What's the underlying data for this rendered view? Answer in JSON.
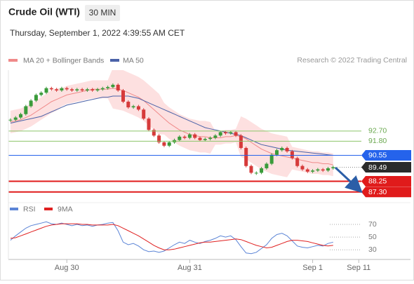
{
  "header": {
    "title": "Crude Oil (WTI)",
    "timeframe": "30 MIN",
    "timestamp": "Thursday, September 1, 2022 4:39:55 AM CET"
  },
  "chart_data": [
    {
      "type": "candlestick",
      "annotation": "Research © 2022 Trading Central",
      "xlim": [
        -0.4,
        78.1
      ],
      "ylim": [
        86.6,
        98.1
      ],
      "candles": {
        "up_color": "#3a9b3a",
        "down_color": "#d63a3a",
        "values": [
          93.7,
          93.9,
          94.2,
          94.9,
          95.4,
          95.9,
          96.1,
          96.5,
          96.4,
          96.3,
          96.5,
          96.4,
          96.3,
          96.4,
          96.3,
          96.4,
          96.3,
          96.4,
          96.5,
          96.6,
          96.8,
          96.3,
          95.3,
          94.8,
          94.9,
          94.6,
          93.8,
          92.8,
          92.3,
          91.7,
          91.4,
          91.7,
          91.9,
          92.2,
          92.1,
          92.4,
          92.1,
          91.9,
          92.0,
          92.1,
          92.3,
          92.6,
          92.5,
          92.6,
          92.3,
          91.2,
          89.6,
          89.0,
          89.0,
          89.4,
          89.8,
          90.6,
          91.0,
          91.2,
          90.9,
          90.3,
          89.6,
          89.3,
          89.1,
          89.2,
          89.3,
          89.2,
          89.4,
          89.5
        ]
      },
      "series": [
        {
          "name": "MA 20 + Bollinger Bands",
          "color": "#f08a8a",
          "band_color": "#fde0e0",
          "values": [
            93.5,
            93.6,
            93.7,
            93.9,
            94.1,
            94.4,
            94.7,
            95.0,
            95.3,
            95.5,
            95.7,
            95.9,
            96.0,
            96.1,
            96.2,
            96.3,
            96.4,
            96.4,
            96.4,
            96.4,
            96.5,
            96.4,
            96.3,
            96.1,
            95.9,
            95.7,
            95.4,
            95.0,
            94.6,
            94.2,
            93.8,
            93.4,
            93.1,
            92.8,
            92.6,
            92.4,
            92.3,
            92.2,
            92.2,
            92.1,
            92.1,
            92.1,
            92.2,
            92.2,
            92.3,
            92.2,
            92.0,
            91.7,
            91.4,
            91.1,
            90.9,
            90.7,
            90.6,
            90.5,
            90.4,
            90.3,
            90.2,
            90.1,
            90.0,
            89.9,
            89.9,
            89.8,
            89.8,
            89.7
          ],
          "upper": [
            94.5,
            94.6,
            94.7,
            94.9,
            95.1,
            95.4,
            95.7,
            96.0,
            96.3,
            96.5,
            96.5,
            96.7,
            96.8,
            96.9,
            97.0,
            97.1,
            97.2,
            97.2,
            97.2,
            97.2,
            98.3,
            98.2,
            98.1,
            97.9,
            97.7,
            97.5,
            97.2,
            96.8,
            96.4,
            96.0,
            95.2,
            94.8,
            94.5,
            94.2,
            94.0,
            93.8,
            93.7,
            93.6,
            93.6,
            93.5,
            92.7,
            92.7,
            92.8,
            92.8,
            92.9,
            94.0,
            93.8,
            93.5,
            93.2,
            92.9,
            92.7,
            92.5,
            92.4,
            92.3,
            92.2,
            91.3,
            91.2,
            91.1,
            91.0,
            90.9,
            90.9,
            90.8,
            90.8,
            90.7
          ],
          "lower": [
            92.5,
            92.6,
            92.7,
            92.9,
            93.1,
            93.4,
            93.7,
            94.0,
            94.3,
            94.5,
            94.9,
            95.1,
            95.2,
            95.3,
            95.4,
            95.5,
            95.6,
            95.6,
            95.6,
            95.6,
            94.7,
            94.6,
            94.5,
            94.3,
            94.1,
            93.9,
            93.6,
            93.2,
            92.8,
            92.4,
            92.4,
            92.0,
            91.7,
            91.4,
            91.2,
            91.0,
            90.9,
            90.8,
            90.8,
            90.7,
            91.5,
            91.5,
            91.6,
            91.6,
            91.7,
            90.4,
            90.2,
            89.9,
            89.6,
            89.3,
            89.1,
            88.9,
            88.8,
            88.7,
            88.6,
            89.3,
            89.2,
            89.1,
            89.0,
            88.9,
            88.9,
            88.8,
            88.8,
            88.7
          ]
        },
        {
          "name": "MA 50",
          "color": "#4a62a8",
          "values": [
            93.4,
            93.5,
            93.6,
            93.7,
            93.8,
            93.9,
            94.0,
            94.2,
            94.4,
            94.6,
            94.8,
            95.0,
            95.1,
            95.2,
            95.3,
            95.4,
            95.5,
            95.6,
            95.7,
            95.7,
            95.8,
            95.8,
            95.8,
            95.8,
            95.7,
            95.6,
            95.4,
            95.2,
            95.0,
            94.8,
            94.6,
            94.4,
            94.2,
            94.0,
            93.8,
            93.6,
            93.4,
            93.2,
            93.0,
            92.9,
            92.8,
            92.7,
            92.6,
            92.5,
            92.4,
            92.3,
            92.1,
            91.9,
            91.7,
            91.5,
            91.4,
            91.3,
            91.2,
            91.1,
            91.0,
            90.95,
            90.9,
            90.85,
            90.8,
            90.75,
            90.7,
            90.65,
            90.6,
            90.55
          ]
        }
      ],
      "levels": [
        {
          "value": 92.7,
          "label": "92.70",
          "color": "#8cc56a",
          "style": "text"
        },
        {
          "value": 91.8,
          "label": "91.80",
          "color": "#8cc56a",
          "style": "text"
        },
        {
          "value": 90.55,
          "color": "#2563eb",
          "style": "box"
        },
        {
          "value": 89.49,
          "color": "#2b2b2b",
          "style": "current"
        },
        {
          "value": 88.25,
          "color": "#e01b1b",
          "style": "box"
        },
        {
          "value": 87.3,
          "label": "87.30",
          "color": "#e01b1b",
          "style": "box"
        }
      ]
    },
    {
      "type": "line",
      "xlim": [
        -0.4,
        78.1
      ],
      "ylim": [
        17,
        81
      ],
      "yticks": [
        70,
        50,
        30
      ],
      "xticks": [
        {
          "value": 11,
          "label": "Aug 30"
        },
        {
          "value": 35,
          "label": "Aug 31"
        },
        {
          "value": 59,
          "label": "Sep 1"
        },
        {
          "value": 68,
          "label": "Sep 11"
        }
      ],
      "series": [
        {
          "name": "RSI",
          "color": "#5b84d6",
          "values": [
            45,
            52,
            58,
            64,
            68,
            70,
            72,
            74,
            71,
            70,
            72,
            70,
            68,
            70,
            68,
            69,
            67,
            69,
            70,
            72,
            73,
            60,
            42,
            38,
            40,
            36,
            30,
            27,
            28,
            26,
            28,
            33,
            38,
            42,
            40,
            45,
            42,
            40,
            43,
            45,
            48,
            52,
            50,
            52,
            46,
            35,
            25,
            24,
            26,
            32,
            38,
            48,
            54,
            56,
            52,
            44,
            36,
            34,
            33,
            35,
            37,
            36,
            40,
            42
          ]
        },
        {
          "name": "9MA",
          "color": "#e02020",
          "values": [
            48,
            49,
            52,
            55,
            58,
            61,
            64,
            67,
            69,
            70,
            71,
            71,
            71,
            71,
            70,
            70,
            69,
            69,
            69,
            69,
            70,
            68,
            64,
            60,
            56,
            52,
            47,
            42,
            37,
            33,
            30,
            30,
            31,
            33,
            35,
            37,
            39,
            41,
            42,
            42,
            43,
            44,
            45,
            46,
            47,
            46,
            43,
            40,
            37,
            35,
            33,
            34,
            37,
            40,
            43,
            45,
            45,
            44,
            43,
            41,
            39,
            37,
            36,
            37
          ]
        }
      ]
    }
  ]
}
